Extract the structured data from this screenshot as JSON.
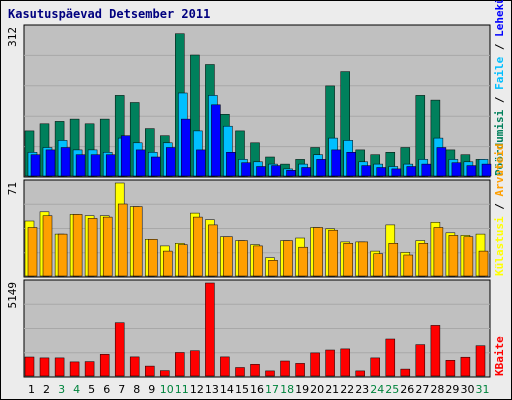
{
  "chart_data": {
    "type": "bar",
    "title": "Kasutuspäevad Detsember 2011",
    "background_color": "#ececec",
    "panel_color": "#c0c0c0",
    "border_color": "#000000",
    "title_color": "#00007f",
    "categories": [
      "1",
      "2",
      "3",
      "4",
      "5",
      "6",
      "7",
      "8",
      "9",
      "10",
      "11",
      "12",
      "13",
      "14",
      "15",
      "16",
      "17",
      "18",
      "19",
      "20",
      "21",
      "22",
      "23",
      "24",
      "25",
      "26",
      "27",
      "28",
      "29",
      "30",
      "31"
    ],
    "weekend_days": [
      "3",
      "4",
      "10",
      "11",
      "17",
      "18",
      "24",
      "25",
      "31"
    ],
    "weekend_label_color": "#00843d",
    "weekday_label_color": "#000000",
    "right_labels": {
      "visits": "Pöördumisi",
      "files": "Faile",
      "pages": "Lehekülgi",
      "hits": "Külastusi",
      "sites": "Arvuteid",
      "kbytes": "KBaite",
      "separator": " / "
    },
    "panels": [
      {
        "id": "top",
        "ymax_label": "312",
        "ylim": [
          0,
          312
        ],
        "series": [
          {
            "key": "visits",
            "color": "#00805c",
            "values": [
              95,
              110,
              115,
              120,
              110,
              120,
              170,
              155,
              100,
              85,
              300,
              255,
              235,
              130,
              95,
              70,
              40,
              25,
              35,
              60,
              190,
              220,
              55,
              45,
              50,
              60,
              170,
              160,
              55,
              45,
              35
            ]
          },
          {
            "key": "files",
            "color": "#00bfff",
            "values": [
              50,
              60,
              75,
              55,
              55,
              50,
              80,
              70,
              50,
              70,
              175,
              95,
              170,
              105,
              35,
              30,
              25,
              15,
              25,
              45,
              80,
              75,
              30,
              25,
              20,
              25,
              35,
              80,
              35,
              30,
              35
            ]
          },
          {
            "key": "pages",
            "color": "#0000ff",
            "values": [
              45,
              55,
              60,
              45,
              45,
              45,
              85,
              55,
              40,
              60,
              120,
              55,
              150,
              50,
              28,
              20,
              22,
              12,
              18,
              35,
              55,
              50,
              22,
              18,
              15,
              20,
              25,
              60,
              28,
              22,
              25
            ]
          }
        ]
      },
      {
        "id": "middle",
        "ymax_label": "71",
        "ylim": [
          0,
          71
        ],
        "series": [
          {
            "key": "hits",
            "color": "#ffff00",
            "values": [
              42,
              49,
              32,
              47,
              46,
              46,
              71,
              53,
              28,
              23,
              25,
              48,
              43,
              30,
              27,
              24,
              14,
              27,
              29,
              37,
              36,
              26,
              26,
              19,
              39,
              18,
              27,
              41,
              33,
              31,
              32
            ]
          },
          {
            "key": "sites",
            "color": "#ff9f00",
            "values": [
              37,
              46,
              32,
              47,
              44,
              45,
              55,
              53,
              28,
              19,
              24,
              45,
              39,
              30,
              27,
              23,
              12,
              27,
              22,
              37,
              35,
              25,
              26,
              17,
              25,
              16,
              25,
              37,
              31,
              30,
              19
            ]
          }
        ]
      },
      {
        "id": "bottom",
        "ymax_label": "5149",
        "ylim": [
          0,
          5149
        ],
        "series": [
          {
            "key": "kbytes",
            "color": "#ff0000",
            "values": [
              1050,
              1000,
              1000,
              780,
              800,
              1200,
              2950,
              1060,
              550,
              300,
              1300,
              1400,
              5149,
              1060,
              470,
              650,
              280,
              830,
              700,
              1280,
              1440,
              1500,
              280,
              1000,
              2050,
              380,
              1740,
              2800,
              870,
              1040,
              1680
            ]
          }
        ]
      }
    ]
  }
}
